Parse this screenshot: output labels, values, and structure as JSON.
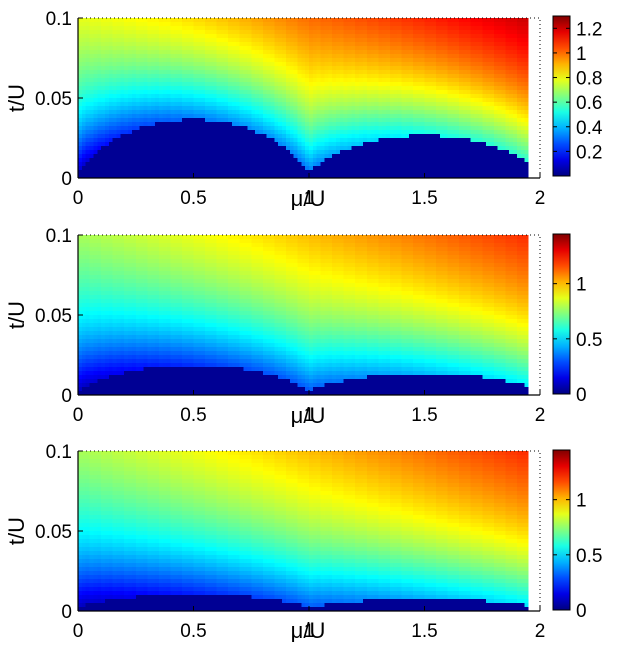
{
  "chart_data": [
    {
      "type": "heatmap",
      "title": "",
      "xlabel": "μ/U",
      "ylabel": "t/U",
      "xlim": [
        0,
        2
      ],
      "ylim": [
        0,
        0.1
      ],
      "x_ticks": [
        "0",
        "0.5",
        "1",
        "1.5",
        "2"
      ],
      "y_ticks": [
        "0",
        "0.05",
        "0.1"
      ],
      "colorbar": {
        "min": 0,
        "max": 1.3,
        "ticks": [
          "0.2",
          "0.4",
          "0.6",
          "0.8",
          "1",
          "1.2"
        ]
      },
      "colormap": "jet",
      "description_values": {
        "max_value_top_right": 1.3,
        "mott_lobe_peaks_t": [
          0.035,
          0.025
        ]
      },
      "grid": false
    },
    {
      "type": "heatmap",
      "title": "",
      "xlabel": "μ/U",
      "ylabel": "t/U",
      "xlim": [
        0,
        2
      ],
      "ylim": [
        0,
        0.1
      ],
      "x_ticks": [
        "0",
        "0.5",
        "1",
        "1.5",
        "2"
      ],
      "y_ticks": [
        "0",
        "0.05",
        "0.1"
      ],
      "colorbar": {
        "min": 0,
        "max": 1.45,
        "ticks": [
          "0",
          "0.5",
          "1"
        ]
      },
      "colormap": "jet",
      "description_values": {
        "max_value_top_right": 1.45,
        "mott_lobe_peaks_t": [
          0.017,
          0.012
        ]
      },
      "grid": false
    },
    {
      "type": "heatmap",
      "title": "",
      "xlabel": "μ/U",
      "ylabel": "t/U",
      "xlim": [
        0,
        2
      ],
      "ylim": [
        0,
        0.1
      ],
      "x_ticks": [
        "0",
        "0.5",
        "1",
        "1.5",
        "2"
      ],
      "y_ticks": [
        "0",
        "0.05",
        "0.1"
      ],
      "colorbar": {
        "min": 0,
        "max": 1.45,
        "ticks": [
          "0",
          "0.5",
          "1"
        ]
      },
      "colormap": "jet",
      "description_values": {
        "max_value_top_right": 1.45,
        "mott_lobe_peaks_t": [
          0.009,
          0.006
        ]
      },
      "grid": false
    }
  ]
}
